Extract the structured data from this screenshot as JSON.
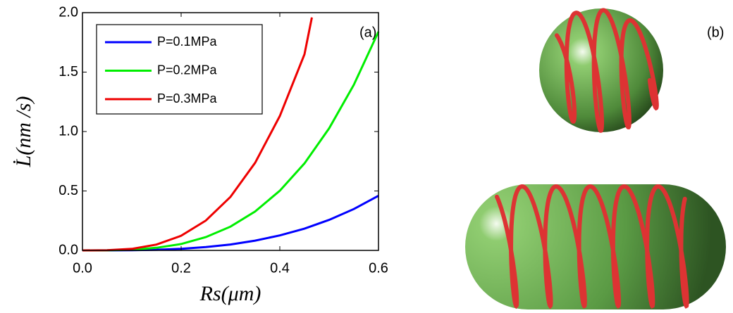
{
  "chart_data": {
    "type": "line",
    "xlabel": "Rs(μm)",
    "ylabel": "L̇(nm /s)",
    "panel_label": "(a)",
    "xlim": [
      0,
      0.6
    ],
    "ylim": [
      0,
      2
    ],
    "xticks": [
      {
        "value": 0,
        "label": "0.0"
      },
      {
        "value": 0.2,
        "label": "0.2"
      },
      {
        "value": 0.4,
        "label": "0.4"
      },
      {
        "value": 0.6,
        "label": "0.6"
      }
    ],
    "yticks": [
      {
        "value": 0,
        "label": "0.0"
      },
      {
        "value": 0.5,
        "label": "0.5"
      },
      {
        "value": 1,
        "label": "1.0"
      },
      {
        "value": 1.5,
        "label": "1.5"
      },
      {
        "value": 2,
        "label": "2.0"
      }
    ],
    "legend": "upper-left",
    "series": [
      {
        "name": "P=0.1MPa",
        "color": "#0000ff",
        "x": [
          0,
          0.05,
          0.1,
          0.15,
          0.2,
          0.25,
          0.3,
          0.35,
          0.4,
          0.45,
          0.5,
          0.55,
          0.6
        ],
        "values": [
          0,
          0.0002,
          0.0015,
          0.0055,
          0.0136,
          0.028,
          0.05,
          0.082,
          0.126,
          0.183,
          0.257,
          0.348,
          0.46
        ]
      },
      {
        "name": "P=0.2MPa",
        "color": "#00ee00",
        "x": [
          0,
          0.05,
          0.1,
          0.15,
          0.2,
          0.25,
          0.3,
          0.35,
          0.4,
          0.45,
          0.5,
          0.55,
          0.6
        ],
        "values": [
          0,
          0.0006,
          0.006,
          0.022,
          0.054,
          0.112,
          0.2,
          0.328,
          0.502,
          0.732,
          1.027,
          1.393,
          1.84
        ]
      },
      {
        "name": "P=0.3MPa",
        "color": "#ee0000",
        "x": [
          0,
          0.05,
          0.1,
          0.15,
          0.2,
          0.25,
          0.3,
          0.35,
          0.4,
          0.45,
          0.465
        ],
        "values": [
          0,
          0.0014,
          0.013,
          0.049,
          0.123,
          0.251,
          0.45,
          0.737,
          1.13,
          1.65,
          1.96
        ]
      }
    ]
  },
  "illustration": {
    "panel_label": "(b)"
  }
}
